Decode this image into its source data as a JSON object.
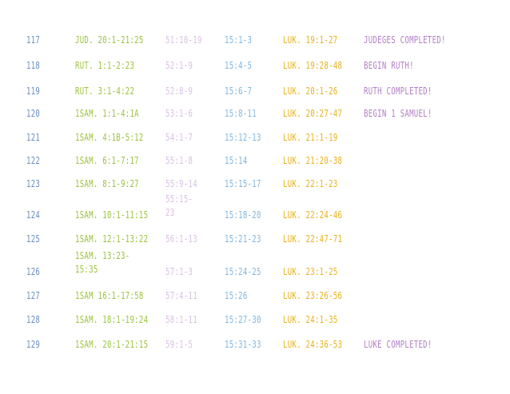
{
  "colors": {
    "day": "#6a8ec2",
    "ot": "#9bc23c",
    "psalms": "#d9bfe4",
    "proverbs": "#7fb6df",
    "luke": "#e8b21a",
    "note": "#b27ec4"
  },
  "rows": [
    {
      "day": "117",
      "ot": "Jud. 20:1-21:25",
      "psalms": "51:10-19",
      "proverbs": "15:1-3",
      "luke": "Luk. 19:1-27",
      "note": "Judeges Completed!"
    },
    {
      "day": "118",
      "ot": "Rut. 1:1-2:23",
      "psalms": "52:1-9",
      "proverbs": "15:4-5",
      "luke": "Luk. 19:28-48",
      "note": "Begin Ruth!"
    },
    {
      "day": "119",
      "ot": "Rut. 3:1-4:22",
      "psalms": "52:8-9",
      "proverbs": "15:6-7",
      "luke": "Luk. 20:1-26",
      "note": "Ruth Completed!"
    },
    {
      "day": "120",
      "ot": "1Sam. 1:1-4:1a",
      "psalms": "53:1-6",
      "proverbs": "15:8-11",
      "luke": "Luk. 20:27-47",
      "note": "Begin 1 Samuel!"
    },
    {
      "day": "121",
      "ot": "1Sam. 4:1b-5:12",
      "psalms": "54:1-7",
      "proverbs": "15:12-13",
      "luke": "Luk. 21:1-19",
      "note": ""
    },
    {
      "day": "122",
      "ot": "1Sam. 6:1-7:17",
      "psalms": "55:1-8",
      "proverbs": "15:14",
      "luke": "Luk. 21:20-38",
      "note": ""
    },
    {
      "day": "123",
      "ot": "1Sam. 8:1-9:27",
      "psalms": "55:9-14",
      "proverbs": "15:15-17",
      "luke": "Luk. 22:1-23",
      "note": ""
    },
    {
      "day": "124",
      "ot": "1Sam. 10:1-11:15",
      "psalms_line1": "55:15-",
      "psalms_line2": "23",
      "proverbs": "15:18-20",
      "luke": "Luk. 22:24-46",
      "note": ""
    },
    {
      "day": "125",
      "ot": "1Sam. 12:1-13:22",
      "psalms": "56:1-13",
      "proverbs": "15:21-23",
      "luke": "Luk. 22:47-71",
      "note": ""
    },
    {
      "day": "126",
      "ot_line1": "1Sam. 13:23-",
      "ot_line2": "15:35",
      "psalms": "57:1-3",
      "proverbs": "15:24-25",
      "luke": "Luk. 23:1-25",
      "note": ""
    },
    {
      "day": "127",
      "ot": "1Sam 16:1-17:58",
      "psalms": "57:4-11",
      "proverbs": "15:26",
      "luke": "Luk. 23:26-56",
      "note": ""
    },
    {
      "day": "128",
      "ot": "1Sam. 18:1-19:24",
      "psalms": "58:1-11",
      "proverbs": "15:27-30",
      "luke": "Luk. 24:1-35",
      "note": ""
    },
    {
      "day": "129",
      "ot": "1Sam. 20:1-21:15",
      "psalms": "59:1-5",
      "proverbs": "15:31-33",
      "luke": "Luk. 24:36-53",
      "note": "Luke Completed!"
    }
  ]
}
